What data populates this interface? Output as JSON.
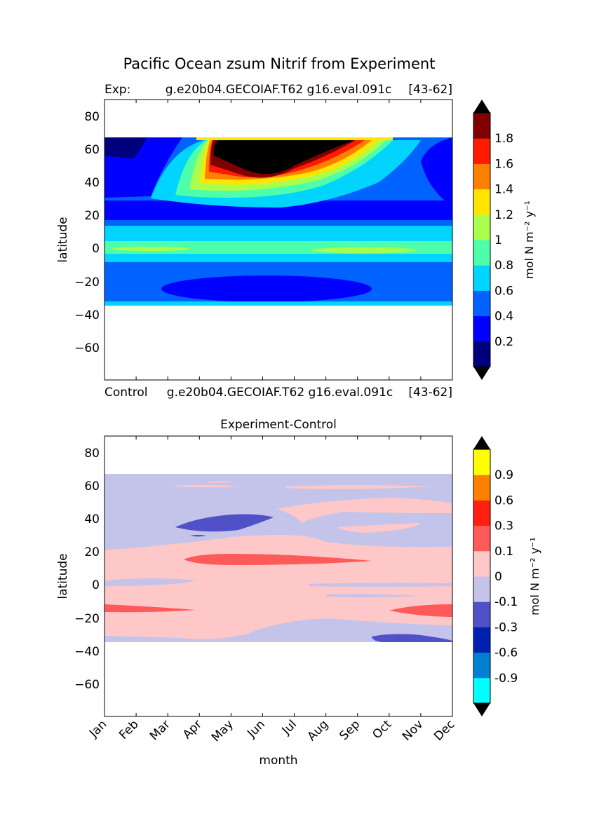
{
  "figure": {
    "title": "Pacific Ocean zsum Nitrif from Experiment"
  },
  "chart_data": [
    {
      "type": "heatmap",
      "panel": "top",
      "subtitle_left": "Exp:",
      "subtitle_center": "g.e20b04.GECOIAF.T62 g16.eval.091c",
      "subtitle_right": "[43-62]",
      "xlabel": "",
      "ylabel": "latitude",
      "ylim": [
        -80,
        90
      ],
      "yticks": [
        "80",
        "60",
        "40",
        "20",
        "0",
        "−20",
        "−40",
        "−60"
      ],
      "x_categories": [
        "Jan",
        "Feb",
        "Mar",
        "Apr",
        "May",
        "Jun",
        "Jul",
        "Aug",
        "Sep",
        "Oct",
        "Nov",
        "Dec"
      ],
      "data_lat_range": [
        -34,
        67
      ],
      "colorbar": {
        "label": "mol N m⁻² y⁻¹",
        "tick_labels": [
          "0.2",
          "0.4",
          "0.6",
          "0.8",
          "1",
          "1.2",
          "1.4",
          "1.6",
          "1.8"
        ],
        "levels": [
          0,
          0.2,
          0.4,
          0.6,
          0.8,
          1.0,
          1.2,
          1.4,
          1.6,
          1.8,
          2.0
        ],
        "colors": [
          "#00007f",
          "#0000ff",
          "#0062ff",
          "#00d4ff",
          "#4dffaa",
          "#aaff4d",
          "#ffe500",
          "#ff8000",
          "#ff1a00",
          "#800000"
        ],
        "extend_color": "#000000"
      },
      "features": [
        {
          "desc": "maximum > 1.8 over high northern latitudes",
          "lat": [
            45,
            65
          ],
          "months": [
            "May",
            "Jul"
          ],
          "value": 2.0
        },
        {
          "desc": "equatorial band",
          "lat": [
            -3,
            3
          ],
          "value": 0.8
        },
        {
          "desc": "subtropical south minimum",
          "lat": [
            -30,
            -20
          ],
          "months": [
            "Apr",
            "Sep"
          ],
          "value": 0.3
        },
        {
          "desc": "northwest corner minimum",
          "lat": [
            55,
            67
          ],
          "months": [
            "Jan",
            "Feb"
          ],
          "value": 0.1
        }
      ]
    },
    {
      "type": "heatmap",
      "panel": "bottom",
      "subtitle_left": "Control",
      "subtitle_center": "g.e20b04.GECOIAF.T62 g16.eval.091c",
      "subtitle_right": "[43-62]",
      "title": "Experiment-Control",
      "xlabel": "month",
      "ylabel": "latitude",
      "ylim": [
        -80,
        90
      ],
      "yticks": [
        "80",
        "60",
        "40",
        "20",
        "0",
        "−20",
        "−40",
        "−60"
      ],
      "x_categories": [
        "Jan",
        "Feb",
        "Mar",
        "Apr",
        "May",
        "Jun",
        "Jul",
        "Aug",
        "Sep",
        "Oct",
        "Nov",
        "Dec"
      ],
      "data_lat_range": [
        -34,
        67
      ],
      "colorbar": {
        "label": "mol N m⁻² y⁻¹",
        "tick_labels": [
          "0.9",
          "0.6",
          "0.3",
          "0.1",
          "0",
          "-0.1",
          "-0.3",
          "-0.6",
          "-0.9"
        ],
        "levels": [
          -1.2,
          -0.9,
          -0.6,
          -0.3,
          -0.1,
          0,
          0.1,
          0.3,
          0.6,
          0.9,
          1.2
        ],
        "colors": [
          "#00ffff",
          "#0080d0",
          "#0020b0",
          "#5050c8",
          "#c4c4ea",
          "#ffc8c8",
          "#ff5a5a",
          "#ff2010",
          "#ff8000",
          "#ffff00"
        ],
        "extend_low": "#000000",
        "extend_high": "#000000"
      },
      "features": [
        {
          "desc": "background",
          "value": -0.05
        },
        {
          "desc": "mid-latitude positive band",
          "lat": [
            -25,
            20
          ],
          "value": 0.05
        },
        {
          "desc": "positive tongue",
          "lat": [
            16,
            20
          ],
          "months": [
            "Apr",
            "Sep"
          ],
          "value": 0.2
        },
        {
          "desc": "negative patch",
          "lat": [
            32,
            42
          ],
          "months": [
            "Apr",
            "Jun"
          ],
          "value": -0.2
        },
        {
          "desc": "southern positive patches",
          "lat": [
            -18,
            -12
          ],
          "value": 0.2
        }
      ]
    }
  ]
}
